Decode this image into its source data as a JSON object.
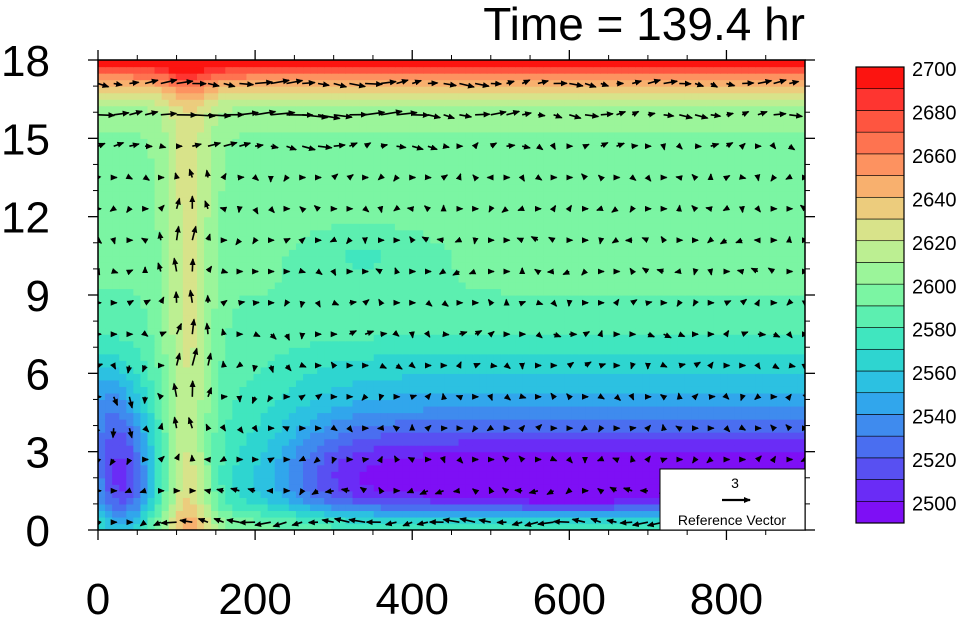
{
  "chart_data": {
    "type": "heatmap",
    "title": "Time = 139.4 hr",
    "xlabel": "",
    "ylabel": "",
    "xlim": [
      0,
      900
    ],
    "ylim": [
      0,
      18
    ],
    "x_ticks": [
      0,
      200,
      400,
      600,
      800
    ],
    "y_ticks": [
      0,
      3,
      6,
      9,
      12,
      15,
      18
    ],
    "colorbar": {
      "levels": [
        2500,
        2510,
        2520,
        2530,
        2540,
        2550,
        2560,
        2570,
        2580,
        2590,
        2600,
        2610,
        2620,
        2630,
        2640,
        2650,
        2660,
        2670,
        2680,
        2690,
        2700
      ],
      "labels": [
        2500,
        2520,
        2540,
        2560,
        2580,
        2600,
        2620,
        2640,
        2660,
        2680,
        2700
      ],
      "colors": [
        "#7e0ff5",
        "#6a2cf6",
        "#5850f2",
        "#4a6ef0",
        "#3f8bee",
        "#31a6ec",
        "#2cc1e1",
        "#2ed5d0",
        "#40e6bf",
        "#5cefb0",
        "#7bf5a3",
        "#9bf59a",
        "#bcef92",
        "#d8e38a",
        "#eccc7d",
        "#f8b06e",
        "#fd9260",
        "#fe7350",
        "#fe5540",
        "#fe3530",
        "#fc1410"
      ]
    },
    "reference_vector": {
      "value": "3",
      "label": "Reference Vector"
    },
    "field_description": "theta-e style cross-section: low values (~2495-2520) in lower troposphere east of x=250 and near x=30, high values (~2620-2640) in a narrow column near x=100-140, increasing upward to ~2700+ near 17.5-18 km",
    "vector_grid": {
      "x_start": 0,
      "x_step": 20,
      "y_start": 0.3,
      "y_step": 1.2
    }
  }
}
